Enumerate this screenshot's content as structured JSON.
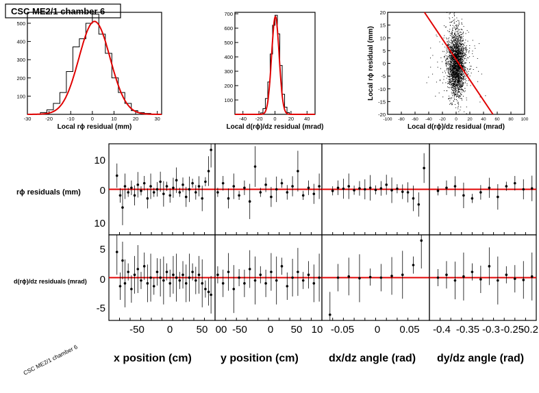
{
  "title_box": "CSC ME2/1 chamber 6",
  "rotated_label": "CSC ME2/1 chamber 6",
  "row_labels": {
    "rphi": "rϕ residuals (mm)",
    "drphi": "d(rϕ)/dz residuals (mrad)"
  },
  "chart_data": [
    {
      "type": "bar",
      "subtype": "histogram-with-gaussian-fit",
      "xlabel": "Local rϕ residual (mm)",
      "ylabel": "",
      "xlim": [
        -30,
        32
      ],
      "ylim": [
        0,
        560
      ],
      "xticks": [
        -30,
        -20,
        -10,
        0,
        10,
        20,
        30
      ],
      "yticks": [
        100,
        200,
        300,
        400,
        500
      ],
      "bin_edges": [
        -24,
        -21,
        -18,
        -15,
        -12,
        -9,
        -6,
        -3,
        0,
        3,
        6,
        9,
        12,
        15,
        18,
        21,
        24,
        27
      ],
      "values": [
        10,
        25,
        60,
        120,
        235,
        370,
        415,
        500,
        550,
        440,
        335,
        200,
        120,
        60,
        20,
        10,
        5
      ],
      "fit": {
        "mean": 1,
        "sigma": 7.2,
        "amplitude": 510
      }
    },
    {
      "type": "bar",
      "subtype": "histogram-with-gaussian-fit",
      "xlabel": "Local d(rϕ)/dz residual (mrad)",
      "ylabel": "",
      "xlim": [
        -50,
        50
      ],
      "ylim": [
        0,
        710
      ],
      "xticks": [
        -40,
        -20,
        0,
        20,
        40
      ],
      "yticks": [
        100,
        200,
        300,
        400,
        500,
        600,
        700
      ],
      "bin_edges": [
        -18,
        -15,
        -12,
        -9,
        -6,
        -3,
        0,
        3,
        6,
        9,
        12,
        15,
        18
      ],
      "values": [
        10,
        40,
        110,
        225,
        420,
        620,
        690,
        560,
        340,
        140,
        50,
        12
      ],
      "fit": {
        "mean": 0.5,
        "sigma": 4.7,
        "amplitude": 680
      }
    },
    {
      "type": "scatter",
      "xlabel": "Local d(rϕ)/dz residual (mrad)",
      "ylabel": "Local rϕ residual (mm)",
      "xlim": [
        -100,
        100
      ],
      "ylim": [
        -20,
        20
      ],
      "xticks": [
        -100,
        -80,
        -60,
        -40,
        -20,
        0,
        20,
        40,
        60,
        80,
        100
      ],
      "yticks": [
        -20,
        -15,
        -10,
        -5,
        0,
        5,
        10,
        15,
        20
      ],
      "cluster": {
        "x_center": 0,
        "x_sigma": 6,
        "y_center": 0,
        "y_sigma": 6,
        "n_points": 2500
      },
      "fit_line": {
        "slope": -0.4,
        "intercept": 1.5
      }
    },
    {
      "type": "scatter",
      "row": "rϕ residuals (mm)",
      "xlabel": "x position (cm)",
      "xlim": [
        -70,
        62
      ],
      "ylim": [
        -15,
        15
      ],
      "xticks": [
        "-50",
        "0",
        "50"
      ],
      "yticks": [
        "10",
        "0",
        "10"
      ],
      "points": [
        [
          -60,
          4.5
        ],
        [
          -56,
          -2
        ],
        [
          -53,
          -6
        ],
        [
          -50,
          1
        ],
        [
          -46,
          -1
        ],
        [
          -42,
          0.5
        ],
        [
          -38,
          -2
        ],
        [
          -34,
          1.5
        ],
        [
          -30,
          -0.5
        ],
        [
          -26,
          2
        ],
        [
          -22,
          -3
        ],
        [
          -18,
          1
        ],
        [
          -14,
          -1
        ],
        [
          -10,
          0
        ],
        [
          -6,
          2.5
        ],
        [
          -2,
          -1.5
        ],
        [
          2,
          1
        ],
        [
          6,
          -2
        ],
        [
          10,
          0.5
        ],
        [
          14,
          3
        ],
        [
          18,
          -1
        ],
        [
          22,
          1.5
        ],
        [
          26,
          -2.5
        ],
        [
          30,
          0
        ],
        [
          34,
          2
        ],
        [
          38,
          -1
        ],
        [
          42,
          1
        ],
        [
          46,
          -3
        ],
        [
          50,
          2.5
        ],
        [
          54,
          6
        ],
        [
          57,
          13
        ]
      ]
    },
    {
      "type": "scatter",
      "row": "rϕ residuals (mm)",
      "xlabel": "y position (cm)",
      "xlim": [
        -100,
        100
      ],
      "ylim": [
        -15,
        15
      ],
      "xticks": [
        "00",
        "-50",
        "0",
        "50",
        "10"
      ],
      "points": [
        [
          -95,
          -1
        ],
        [
          -85,
          2
        ],
        [
          -75,
          -3
        ],
        [
          -65,
          1
        ],
        [
          -55,
          -2
        ],
        [
          -45,
          0.5
        ],
        [
          -35,
          -4
        ],
        [
          -25,
          7.5
        ],
        [
          -15,
          -1
        ],
        [
          -5,
          1.5
        ],
        [
          5,
          -2.5
        ],
        [
          15,
          0
        ],
        [
          25,
          2
        ],
        [
          35,
          -1
        ],
        [
          45,
          1
        ],
        [
          55,
          6
        ],
        [
          65,
          -2
        ],
        [
          75,
          0.5
        ],
        [
          85,
          -1.5
        ],
        [
          95,
          1
        ]
      ]
    },
    {
      "type": "scatter",
      "row": "rϕ residuals (mm)",
      "xlabel": "dx/dz angle (rad)",
      "xlim": [
        -0.1,
        0.1
      ],
      "ylim": [
        -15,
        15
      ],
      "xticks": [
        "-0.05",
        "0",
        "0.05"
      ],
      "points": [
        [
          -0.08,
          -0.5
        ],
        [
          -0.07,
          0.5
        ],
        [
          -0.06,
          0.2
        ],
        [
          -0.05,
          1
        ],
        [
          -0.04,
          -0.3
        ],
        [
          -0.03,
          0.3
        ],
        [
          -0.02,
          0
        ],
        [
          -0.01,
          0.5
        ],
        [
          0,
          -0.2
        ],
        [
          0.01,
          0.3
        ],
        [
          0.02,
          1.5
        ],
        [
          0.03,
          -0.3
        ],
        [
          0.04,
          0.2
        ],
        [
          0.05,
          -0.8
        ],
        [
          0.06,
          -1
        ],
        [
          0.07,
          -3
        ],
        [
          0.08,
          -5
        ],
        [
          0.09,
          7
        ]
      ]
    },
    {
      "type": "scatter",
      "row": "rϕ residuals (mm)",
      "xlabel": "dy/dz angle (rad)",
      "xlim": [
        -0.43,
        -0.18
      ],
      "ylim": [
        -15,
        15
      ],
      "xticks": [
        "-0.4",
        "-0.35",
        "-0.3",
        "-0.25",
        "-0.2"
      ],
      "points": [
        [
          -0.41,
          -0.5
        ],
        [
          -0.39,
          0.5
        ],
        [
          -0.37,
          1
        ],
        [
          -0.35,
          -2
        ],
        [
          -0.33,
          -3
        ],
        [
          -0.31,
          -1
        ],
        [
          -0.29,
          0.5
        ],
        [
          -0.27,
          -2.5
        ],
        [
          -0.25,
          1
        ],
        [
          -0.23,
          2
        ],
        [
          -0.21,
          0
        ],
        [
          -0.19,
          0.3
        ]
      ]
    },
    {
      "type": "scatter",
      "row": "d(rϕ)/dz residuals (mrad)",
      "xlabel": "x position (cm)",
      "xlim": [
        -70,
        62
      ],
      "ylim": [
        -7.5,
        7.5
      ],
      "yticks": [
        "5",
        "0",
        "-5"
      ],
      "points": [
        [
          -60,
          4.5
        ],
        [
          -56,
          -1.5
        ],
        [
          -53,
          3
        ],
        [
          -50,
          -1
        ],
        [
          -46,
          1
        ],
        [
          -42,
          -2
        ],
        [
          -38,
          0.5
        ],
        [
          -34,
          1.5
        ],
        [
          -30,
          -0.5
        ],
        [
          -26,
          2
        ],
        [
          -22,
          -1
        ],
        [
          -18,
          0
        ],
        [
          -14,
          -1.5
        ],
        [
          -10,
          1
        ],
        [
          -6,
          0
        ],
        [
          -2,
          -0.5
        ],
        [
          2,
          1
        ],
        [
          6,
          -1
        ],
        [
          10,
          0.5
        ],
        [
          14,
          0
        ],
        [
          18,
          -0.5
        ],
        [
          22,
          0.5
        ],
        [
          26,
          -1
        ],
        [
          30,
          0
        ],
        [
          34,
          1
        ],
        [
          38,
          -0.5
        ],
        [
          42,
          0.5
        ],
        [
          46,
          -1
        ],
        [
          50,
          -2
        ],
        [
          54,
          -2.5
        ],
        [
          57,
          -3
        ]
      ]
    },
    {
      "type": "scatter",
      "row": "d(rϕ)/dz residuals (mrad)",
      "xlabel": "y position (cm)",
      "xlim": [
        -100,
        100
      ],
      "ylim": [
        -7.5,
        7.5
      ],
      "points": [
        [
          -95,
          0.5
        ],
        [
          -85,
          -1
        ],
        [
          -75,
          1
        ],
        [
          -65,
          -2
        ],
        [
          -55,
          0
        ],
        [
          -45,
          -1
        ],
        [
          -35,
          1.5
        ],
        [
          -25,
          -0.5
        ],
        [
          -15,
          0.5
        ],
        [
          -5,
          -1
        ],
        [
          5,
          1
        ],
        [
          15,
          -0.5
        ],
        [
          25,
          2
        ],
        [
          35,
          -1.5
        ],
        [
          45,
          0
        ],
        [
          55,
          1
        ],
        [
          65,
          -0.5
        ],
        [
          75,
          0.5
        ],
        [
          85,
          -1
        ],
        [
          95,
          0
        ]
      ]
    },
    {
      "type": "scatter",
      "row": "d(rϕ)/dz residuals (mrad)",
      "xlabel": "dx/dz angle (rad)",
      "xlim": [
        -0.1,
        0.1
      ],
      "ylim": [
        -7.5,
        7.5
      ],
      "points": [
        [
          -0.085,
          -6.5
        ],
        [
          -0.07,
          0
        ],
        [
          -0.05,
          0.2
        ],
        [
          -0.03,
          -0.1
        ],
        [
          -0.01,
          0.1
        ],
        [
          0.01,
          0
        ],
        [
          0.03,
          0.3
        ],
        [
          0.05,
          0.5
        ],
        [
          0.07,
          2.2
        ],
        [
          0.085,
          6.5
        ]
      ]
    },
    {
      "type": "scatter",
      "row": "d(rϕ)/dz residuals (mrad)",
      "xlabel": "dy/dz angle (rad)",
      "xlim": [
        -0.43,
        -0.18
      ],
      "ylim": [
        -7.5,
        7.5
      ],
      "points": [
        [
          -0.41,
          0
        ],
        [
          -0.39,
          0.5
        ],
        [
          -0.37,
          -0.5
        ],
        [
          -0.35,
          0.2
        ],
        [
          -0.33,
          1
        ],
        [
          -0.31,
          -0.3
        ],
        [
          -0.29,
          2
        ],
        [
          -0.27,
          -0.5
        ],
        [
          -0.25,
          0.5
        ],
        [
          -0.23,
          -0.2
        ],
        [
          -0.21,
          -0.4
        ],
        [
          -0.19,
          0.2
        ]
      ]
    }
  ],
  "bottom_labels": {
    "x_position": "x position (cm)",
    "y_position": "y position (cm)",
    "dxdz": "dx/dz angle (rad)",
    "dydz": "dy/dz angle (rad)"
  },
  "colors": {
    "fit": "#e00000",
    "marker": "#000000"
  }
}
